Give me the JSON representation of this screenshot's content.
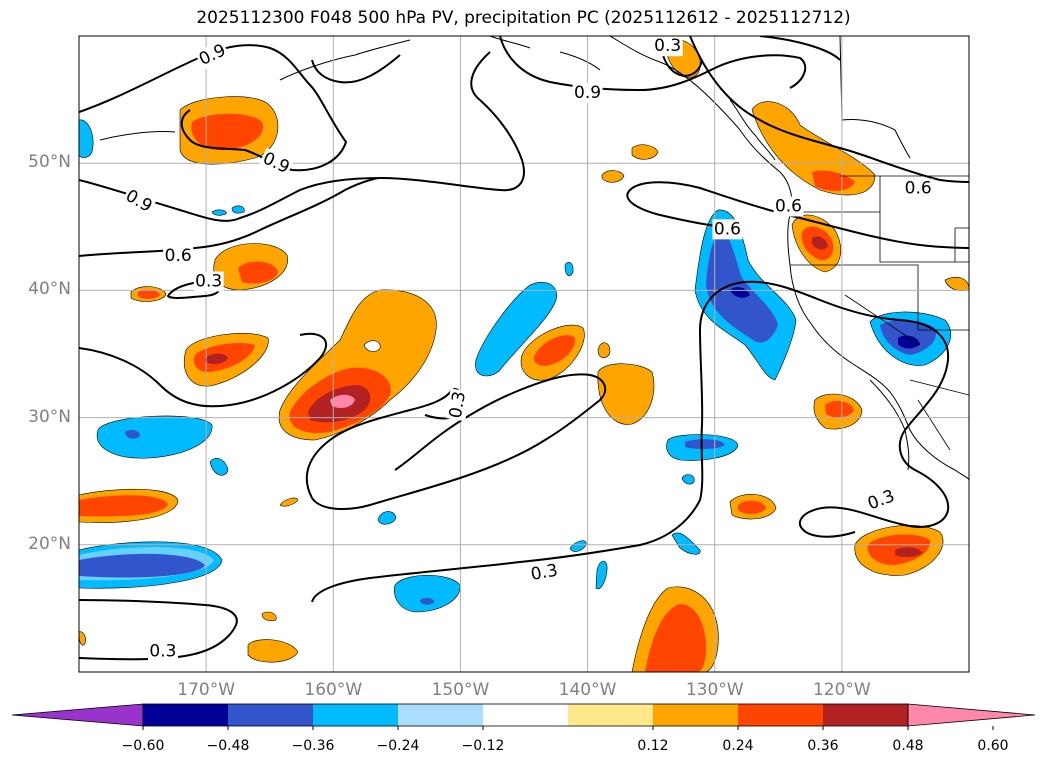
{
  "title": "2025112300 F048 500 hPa PV, precipitation PC (2025112612 - 2025112712)",
  "map": {
    "lat_labels": [
      {
        "label": "50°N",
        "lat": 50
      },
      {
        "label": "40°N",
        "lat": 40
      },
      {
        "label": "30°N",
        "lat": 30
      },
      {
        "label": "20°N",
        "lat": 20
      }
    ],
    "lon_labels": [
      {
        "label": "170°W",
        "lon": -170
      },
      {
        "label": "160°W",
        "lon": -160
      },
      {
        "label": "150°W",
        "lon": -150
      },
      {
        "label": "140°W",
        "lon": -140
      },
      {
        "label": "130°W",
        "lon": -130
      },
      {
        "label": "120°W",
        "lon": -120
      }
    ],
    "pv_contour_labels": [
      {
        "text": "0.9",
        "lon": -169.5,
        "lat": 58.5,
        "rot": -25
      },
      {
        "text": "0.9",
        "lon": -140,
        "lat": 55.5,
        "rot": 0
      },
      {
        "text": "0.3",
        "lon": -133.7,
        "lat": 59.2,
        "rot": 0
      },
      {
        "text": "0.9",
        "lon": -164.5,
        "lat": 50,
        "rot": 25
      },
      {
        "text": "0.9",
        "lon": -175.3,
        "lat": 47,
        "rot": 30
      },
      {
        "text": "0.6",
        "lon": -172.2,
        "lat": 42.7,
        "rot": 0
      },
      {
        "text": "0.3",
        "lon": -169.8,
        "lat": 40.7,
        "rot": 0
      },
      {
        "text": "0.6",
        "lon": -129,
        "lat": 44.8,
        "rot": 0
      },
      {
        "text": "0.6",
        "lon": -124.2,
        "lat": 46.6,
        "rot": 0
      },
      {
        "text": "0.6",
        "lon": -114,
        "lat": 48,
        "rot": 0
      },
      {
        "text": "0.3",
        "lon": -150.2,
        "lat": 31,
        "rot": -80
      },
      {
        "text": "0.3",
        "lon": -143.4,
        "lat": 17.8,
        "rot": -10
      },
      {
        "text": "0.3",
        "lon": -116.9,
        "lat": 23.5,
        "rot": -20
      },
      {
        "text": "0.3",
        "lon": -173.4,
        "lat": 11.6,
        "rot": 0
      }
    ]
  },
  "colorbar": {
    "colors": [
      "#9933cc",
      "#000099",
      "#3355cc",
      "#00bbff",
      "#aaddff",
      "#ffffff",
      "#ffe88a",
      "#ffa500",
      "#ff4500",
      "#b22222",
      "#ff88aa"
    ],
    "tick_labels": [
      "−0.60",
      "−0.48",
      "−0.36",
      "−0.24",
      "−0.12",
      "0.12",
      "0.24",
      "0.36",
      "0.48",
      "0.60"
    ]
  }
}
